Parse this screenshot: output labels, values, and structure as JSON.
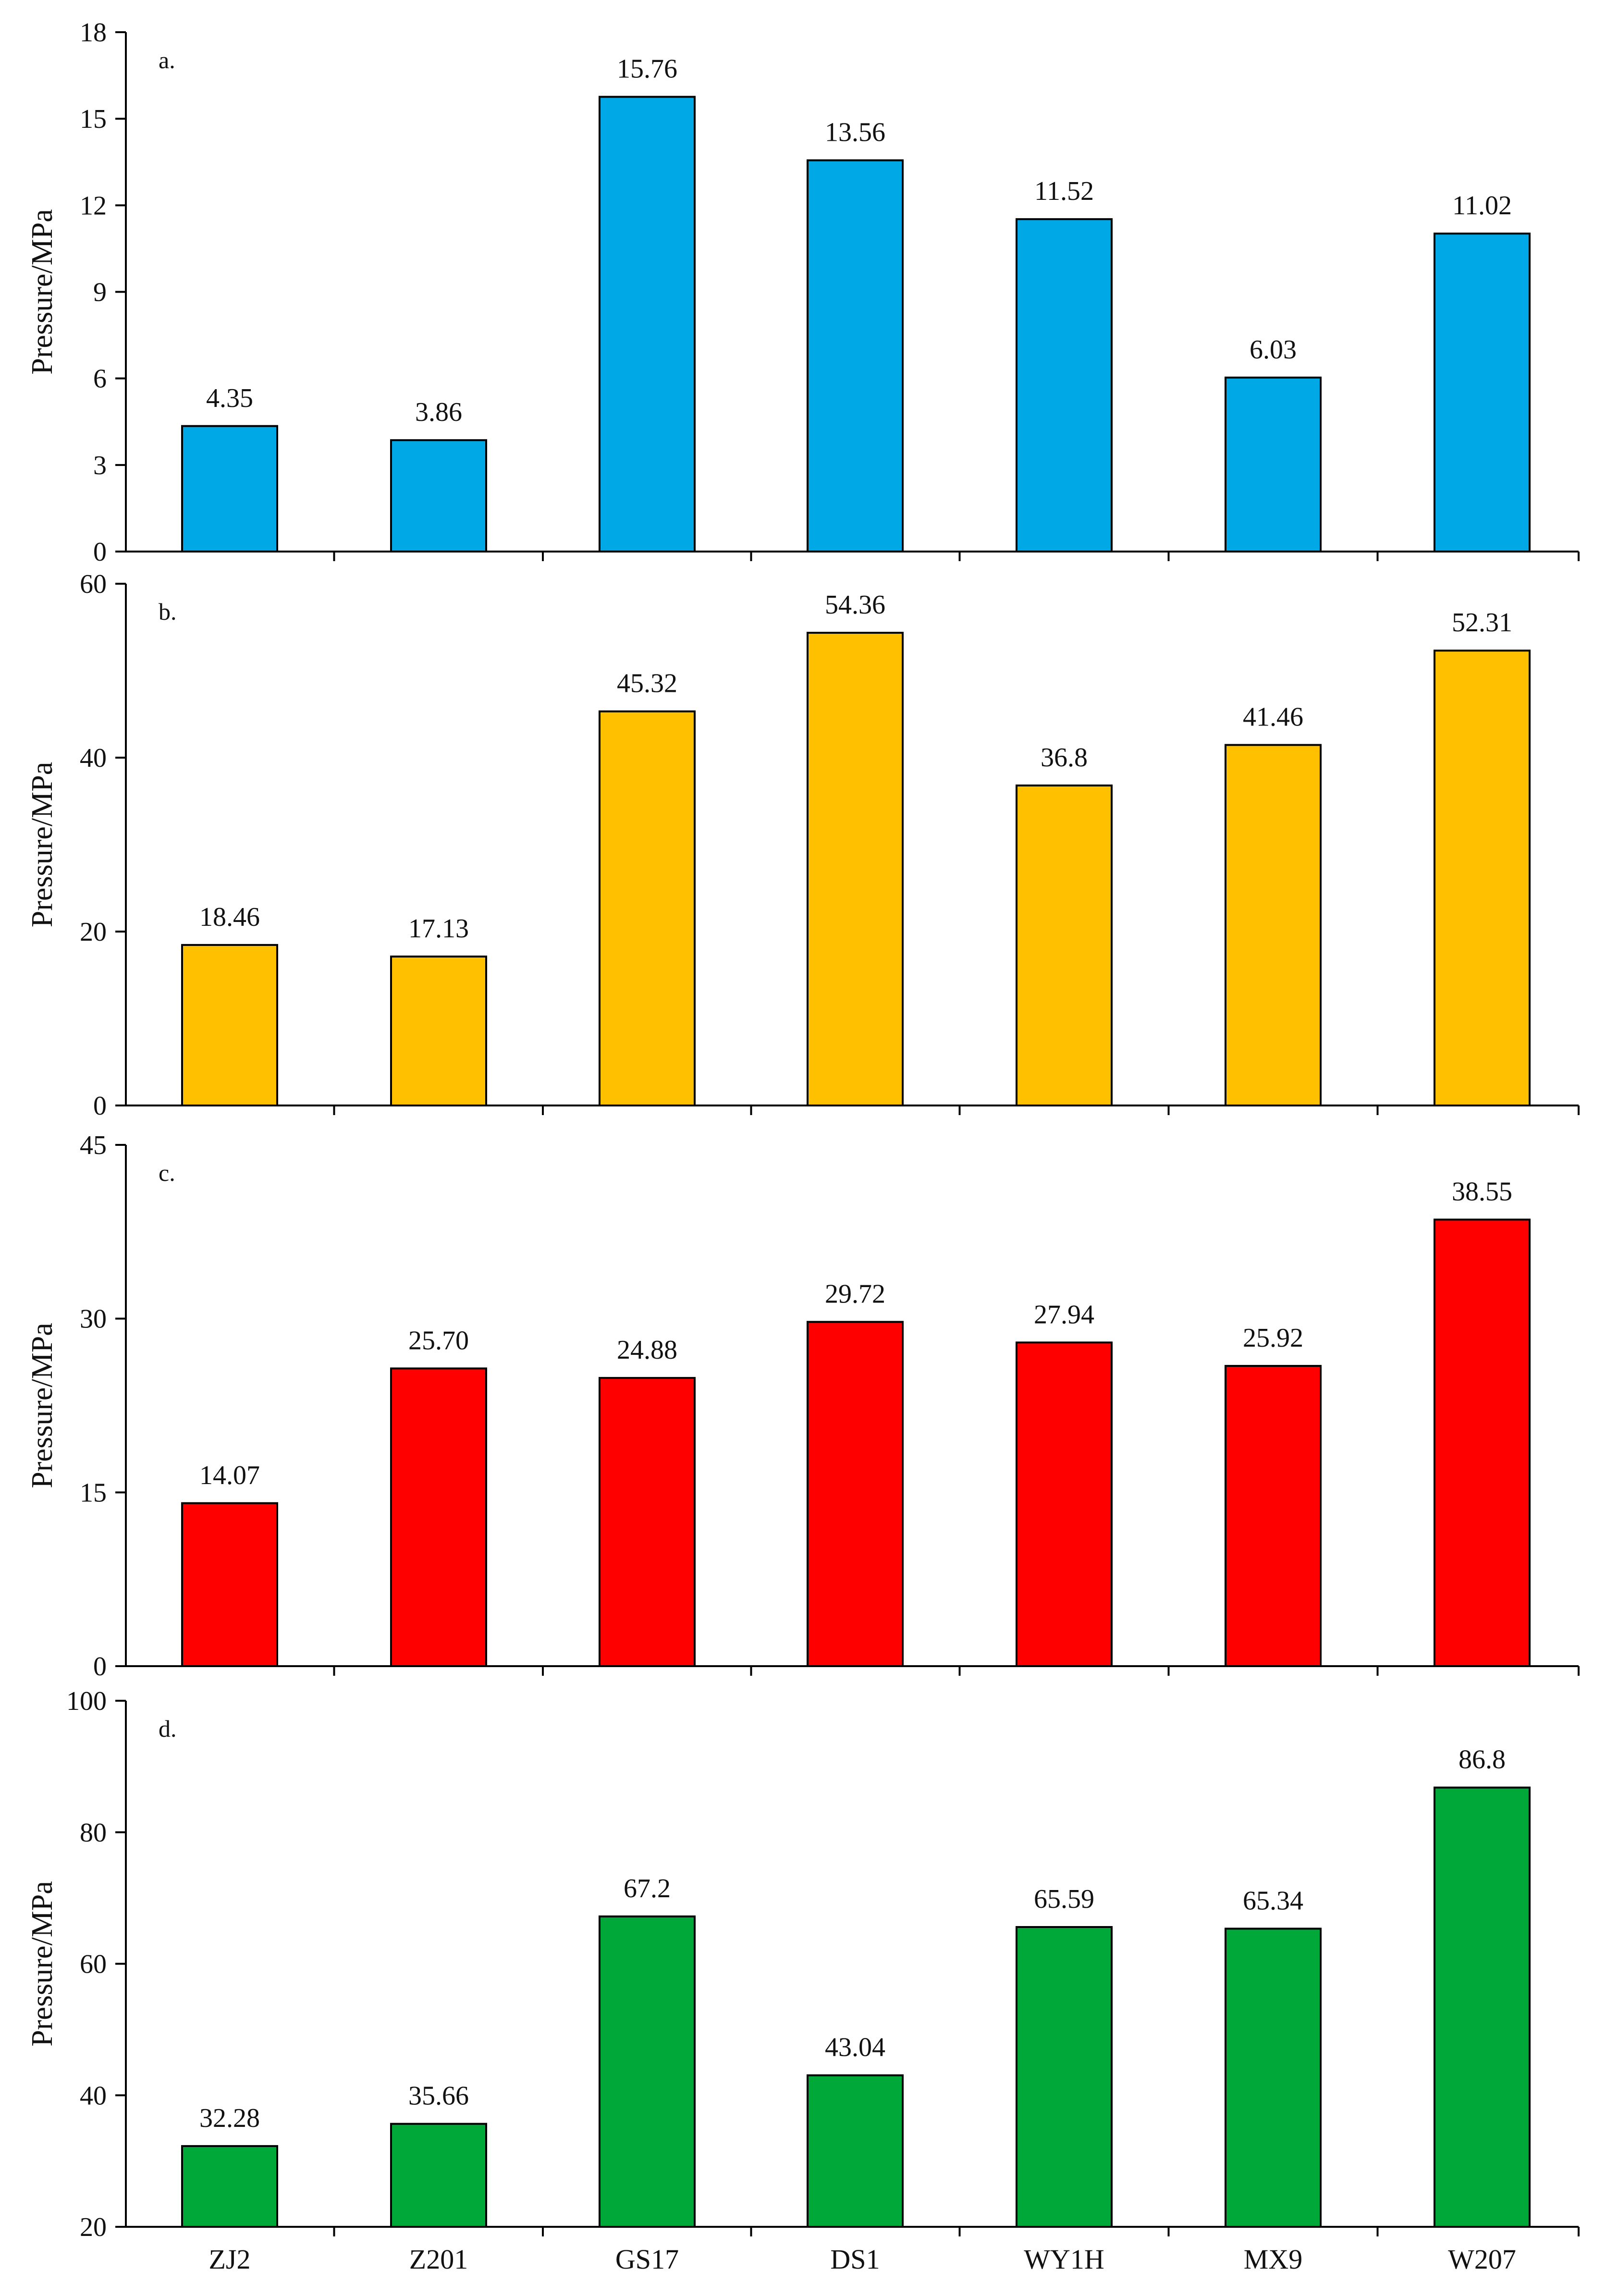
{
  "chart_data": [
    {
      "type": "bar",
      "panel": "a.",
      "ylabel": "Pressure/MPa",
      "ylim": [
        0,
        18
      ],
      "yticks": [
        0,
        3,
        6,
        9,
        12,
        15,
        18
      ],
      "categories": [
        "ZJ2",
        "Z201",
        "GS17",
        "DS1",
        "WY1H",
        "MX9",
        "W207"
      ],
      "values": [
        4.35,
        3.86,
        15.76,
        13.56,
        11.52,
        6.03,
        11.02
      ],
      "value_labels": [
        "4.35",
        "3.86",
        "15.76",
        "13.56",
        "11.52",
        "6.03",
        "11.02"
      ],
      "color": "#00A9E6"
    },
    {
      "type": "bar",
      "panel": "b.",
      "ylabel": "Pressure/MPa",
      "ylim": [
        0,
        60
      ],
      "yticks": [
        0,
        20,
        40,
        60
      ],
      "categories": [
        "ZJ2",
        "Z201",
        "GS17",
        "DS1",
        "WY1H",
        "MX9",
        "W207"
      ],
      "values": [
        18.46,
        17.13,
        45.32,
        54.36,
        36.8,
        41.46,
        52.31
      ],
      "value_labels": [
        "18.46",
        "17.13",
        "45.32",
        "54.36",
        "36.8",
        "41.46",
        "52.31"
      ],
      "color": "#FFC000"
    },
    {
      "type": "bar",
      "panel": "c.",
      "ylabel": "Pressure/MPa",
      "ylim": [
        0,
        45
      ],
      "yticks": [
        0,
        15,
        30,
        45
      ],
      "categories": [
        "ZJ2",
        "Z201",
        "GS17",
        "DS1",
        "WY1H",
        "MX9",
        "W207"
      ],
      "values": [
        14.07,
        25.7,
        24.88,
        29.72,
        27.94,
        25.92,
        38.55
      ],
      "value_labels": [
        "14.07",
        "25.70",
        "24.88",
        "29.72",
        "27.94",
        "25.92",
        "38.55"
      ],
      "color": "#FF0000"
    },
    {
      "type": "bar",
      "panel": "d.",
      "ylabel": "Pressure/MPa",
      "ylim": [
        20,
        100
      ],
      "yticks": [
        20,
        40,
        60,
        80,
        100
      ],
      "categories": [
        "ZJ2",
        "Z201",
        "GS17",
        "DS1",
        "WY1H",
        "MX9",
        "W207"
      ],
      "values": [
        32.28,
        35.66,
        67.2,
        43.04,
        65.59,
        65.34,
        86.8
      ],
      "value_labels": [
        "32.28",
        "35.66",
        "67.2",
        "43.04",
        "65.59",
        "65.34",
        "86.8"
      ],
      "color": "#00A83A"
    }
  ]
}
